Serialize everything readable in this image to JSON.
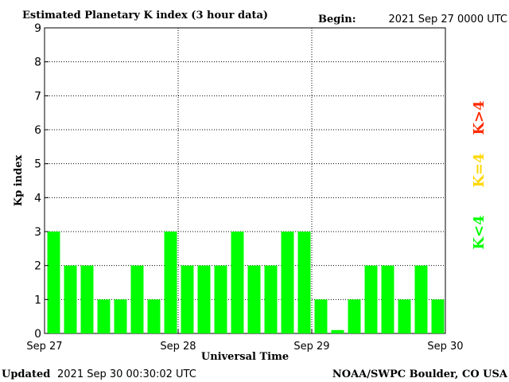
{
  "header": {
    "title": "Estimated Planetary K index (3 hour data)",
    "begin_label": "Begin:",
    "begin_value": "2021 Sep 27 0000 UTC"
  },
  "footer": {
    "updated_label": "Updated",
    "updated_value": "2021 Sep 30 00:30:02 UTC",
    "source": "NOAA/SWPC Boulder, CO USA"
  },
  "legend": {
    "low": "K<4",
    "mid": "K=4",
    "high": "K>4",
    "colors": {
      "low": "#00ff00",
      "mid": "#ffd700",
      "high": "#ff2a00"
    }
  },
  "chart_data": {
    "type": "bar",
    "title": "Estimated Planetary K index (3 hour data)",
    "xlabel": "Universal Time",
    "ylabel": "Kp index",
    "ylim": [
      0,
      9
    ],
    "yticks": [
      "0",
      "1",
      "2",
      "3",
      "4",
      "5",
      "6",
      "7",
      "8",
      "9"
    ],
    "xticks": [
      "Sep 27",
      "Sep 28",
      "Sep 29",
      "Sep 30"
    ],
    "grid": true,
    "bar_color": "#00ff00",
    "values": [
      3,
      2,
      2,
      1,
      1,
      2,
      1,
      3,
      2,
      2,
      2,
      3,
      2,
      2,
      3,
      3,
      1,
      0.1,
      1,
      2,
      2,
      1,
      2,
      1
    ]
  }
}
